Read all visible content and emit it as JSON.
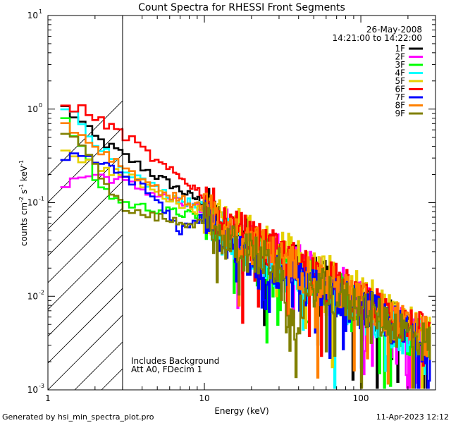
{
  "chart_data": {
    "type": "line",
    "title": "Count Spectra for RHESSI Front Segments",
    "xlabel": "Energy (keV)",
    "ylabel": {
      "base": "counts cm",
      "exp1": "-2",
      "mid1": " s",
      "exp2": "-1",
      "mid2": " keV",
      "exp3": "-1"
    },
    "xscale": "log",
    "yscale": "log",
    "xlim": [
      1,
      300
    ],
    "ylim": [
      0.001,
      10
    ],
    "x_ticks": [
      {
        "value": 1,
        "label": "1"
      },
      {
        "value": 10,
        "label": "10"
      },
      {
        "value": 100,
        "label": "100"
      }
    ],
    "y_ticks": [
      {
        "value": 0.001,
        "base": "10",
        "exp": "-3"
      },
      {
        "value": 0.01,
        "base": "10",
        "exp": "-2"
      },
      {
        "value": 0.1,
        "base": "10",
        "exp": "-1"
      },
      {
        "value": 1,
        "base": "10",
        "exp": "0"
      },
      {
        "value": 10,
        "base": "10",
        "exp": "1"
      }
    ],
    "date": "26-May-2008",
    "time_range": "14:21:00 to 14:22:00",
    "hatched_region_xmax": 3,
    "annotations": [
      "Includes Background",
      "Att A0, FDecim 1"
    ],
    "series": [
      {
        "name": "1F",
        "color": "#000000",
        "anchors": [
          [
            1.2,
            1.15
          ],
          [
            1.6,
            0.75
          ],
          [
            2,
            0.5
          ],
          [
            3,
            0.33
          ],
          [
            4,
            0.24
          ],
          [
            5,
            0.19
          ],
          [
            6,
            0.16
          ],
          [
            8,
            0.12
          ],
          [
            10,
            0.1
          ],
          [
            12,
            0.065
          ],
          [
            15,
            0.05
          ],
          [
            20,
            0.038
          ],
          [
            30,
            0.026
          ],
          [
            50,
            0.017
          ],
          [
            80,
            0.0105
          ],
          [
            120,
            0.007
          ],
          [
            200,
            0.0042
          ],
          [
            280,
            0.0033
          ]
        ]
      },
      {
        "name": "2F",
        "color": "#ff00ff",
        "anchors": [
          [
            1.2,
            0.14
          ],
          [
            1.5,
            0.18
          ],
          [
            2,
            0.2
          ],
          [
            3,
            0.17
          ],
          [
            4,
            0.14
          ],
          [
            5,
            0.12
          ],
          [
            6,
            0.11
          ],
          [
            8,
            0.09
          ],
          [
            10,
            0.085
          ],
          [
            12,
            0.065
          ],
          [
            15,
            0.05
          ],
          [
            20,
            0.038
          ],
          [
            30,
            0.027
          ],
          [
            50,
            0.018
          ],
          [
            80,
            0.012
          ],
          [
            120,
            0.008
          ],
          [
            200,
            0.0048
          ],
          [
            280,
            0.0035
          ]
        ]
      },
      {
        "name": "3F",
        "color": "#00ff00",
        "anchors": [
          [
            1.2,
            0.85
          ],
          [
            1.6,
            0.45
          ],
          [
            2,
            0.18
          ],
          [
            2.5,
            0.12
          ],
          [
            3,
            0.1
          ],
          [
            4,
            0.09
          ],
          [
            5,
            0.085
          ],
          [
            6,
            0.08
          ],
          [
            8,
            0.075
          ],
          [
            10,
            0.07
          ],
          [
            12,
            0.055
          ],
          [
            15,
            0.045
          ],
          [
            20,
            0.033
          ],
          [
            30,
            0.024
          ],
          [
            50,
            0.015
          ],
          [
            80,
            0.01
          ],
          [
            120,
            0.0068
          ],
          [
            200,
            0.004
          ],
          [
            280,
            0.0031
          ]
        ]
      },
      {
        "name": "4F",
        "color": "#00ffff",
        "anchors": [
          [
            1.2,
            1.1
          ],
          [
            1.6,
            0.8
          ],
          [
            2,
            0.45
          ],
          [
            3,
            0.25
          ],
          [
            4,
            0.17
          ],
          [
            5,
            0.14
          ],
          [
            6,
            0.12
          ],
          [
            8,
            0.1
          ],
          [
            10,
            0.09
          ],
          [
            12,
            0.055
          ],
          [
            15,
            0.04
          ],
          [
            20,
            0.03
          ],
          [
            30,
            0.02
          ],
          [
            50,
            0.013
          ],
          [
            80,
            0.0085
          ],
          [
            120,
            0.006
          ],
          [
            200,
            0.0038
          ],
          [
            280,
            0.003
          ]
        ]
      },
      {
        "name": "5F",
        "color": "#e5d000",
        "anchors": [
          [
            1.2,
            0.42
          ],
          [
            1.6,
            0.3
          ],
          [
            2,
            0.25
          ],
          [
            3,
            0.2
          ],
          [
            4,
            0.16
          ],
          [
            5,
            0.13
          ],
          [
            6,
            0.11
          ],
          [
            8,
            0.09
          ],
          [
            10,
            0.08
          ],
          [
            12,
            0.07
          ],
          [
            15,
            0.06
          ],
          [
            20,
            0.045
          ],
          [
            30,
            0.032
          ],
          [
            50,
            0.021
          ],
          [
            80,
            0.013
          ],
          [
            120,
            0.0088
          ],
          [
            200,
            0.0052
          ],
          [
            280,
            0.004
          ]
        ]
      },
      {
        "name": "6F",
        "color": "#ff0000",
        "anchors": [
          [
            1.2,
            1.0
          ],
          [
            1.6,
            1.05
          ],
          [
            2,
            0.8
          ],
          [
            3,
            0.55
          ],
          [
            4,
            0.38
          ],
          [
            5,
            0.27
          ],
          [
            6,
            0.22
          ],
          [
            8,
            0.16
          ],
          [
            10,
            0.12
          ],
          [
            12,
            0.075
          ],
          [
            15,
            0.055
          ],
          [
            20,
            0.04
          ],
          [
            30,
            0.028
          ],
          [
            50,
            0.018
          ],
          [
            80,
            0.012
          ],
          [
            120,
            0.008
          ],
          [
            200,
            0.0048
          ],
          [
            280,
            0.0036
          ]
        ]
      },
      {
        "name": "7F",
        "color": "#0000ff",
        "anchors": [
          [
            1.2,
            0.26
          ],
          [
            1.6,
            0.32
          ],
          [
            2,
            0.28
          ],
          [
            3,
            0.2
          ],
          [
            4,
            0.15
          ],
          [
            5,
            0.1
          ],
          [
            6,
            0.07
          ],
          [
            7,
            0.05
          ],
          [
            8,
            0.06
          ],
          [
            10,
            0.07
          ],
          [
            12,
            0.05
          ],
          [
            15,
            0.035
          ],
          [
            20,
            0.025
          ],
          [
            25,
            0.009
          ],
          [
            30,
            0.018
          ],
          [
            50,
            0.012
          ],
          [
            80,
            0.009
          ],
          [
            120,
            0.0065
          ],
          [
            200,
            0.004
          ],
          [
            280,
            0.003
          ]
        ]
      },
      {
        "name": "8F",
        "color": "#ff8000",
        "anchors": [
          [
            1.2,
            0.75
          ],
          [
            1.6,
            0.55
          ],
          [
            2,
            0.4
          ],
          [
            3,
            0.25
          ],
          [
            4,
            0.18
          ],
          [
            5,
            0.14
          ],
          [
            6,
            0.12
          ],
          [
            8,
            0.1
          ],
          [
            10,
            0.09
          ],
          [
            12,
            0.06
          ],
          [
            15,
            0.05
          ],
          [
            20,
            0.037
          ],
          [
            30,
            0.025
          ],
          [
            50,
            0.016
          ],
          [
            80,
            0.011
          ],
          [
            120,
            0.0075
          ],
          [
            200,
            0.0045
          ],
          [
            280,
            0.0034
          ]
        ]
      },
      {
        "name": "9F",
        "color": "#808000",
        "anchors": [
          [
            1.2,
            0.65
          ],
          [
            1.6,
            0.4
          ],
          [
            2,
            0.25
          ],
          [
            3,
            0.09
          ],
          [
            4,
            0.075
          ],
          [
            5,
            0.07
          ],
          [
            6,
            0.065
          ],
          [
            8,
            0.06
          ],
          [
            10,
            0.06
          ],
          [
            12,
            0.045
          ],
          [
            15,
            0.035
          ],
          [
            20,
            0.028
          ],
          [
            30,
            0.02
          ],
          [
            35,
            0.004
          ],
          [
            50,
            0.013
          ],
          [
            80,
            0.009
          ],
          [
            120,
            0.0065
          ],
          [
            200,
            0.004
          ],
          [
            280,
            0.003
          ]
        ]
      }
    ]
  },
  "footer": {
    "left": "Generated by hsi_min_spectra_plot.pro",
    "right": "11-Apr-2023 12:12"
  }
}
